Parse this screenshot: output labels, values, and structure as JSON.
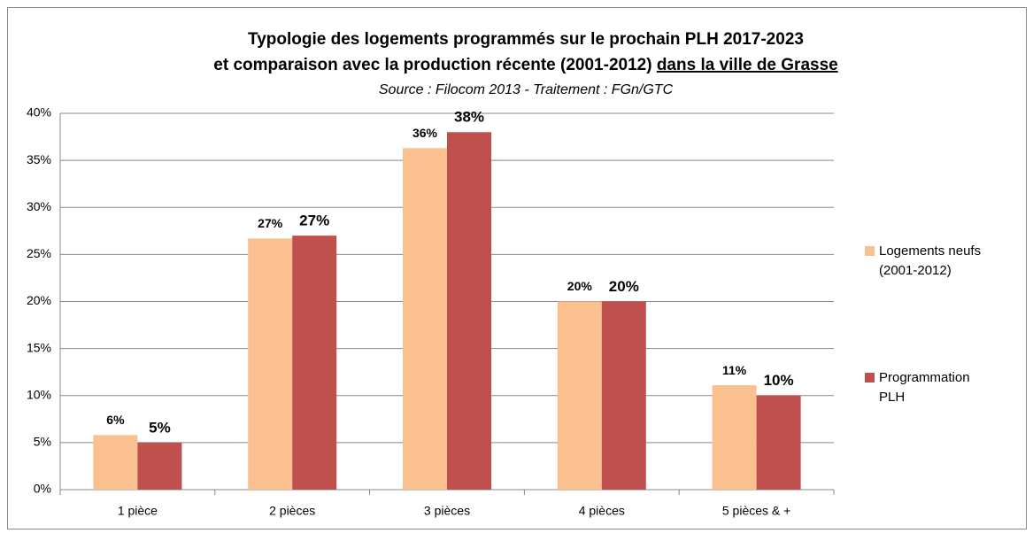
{
  "chart_data": {
    "type": "bar",
    "title": [
      "Typologie des logements programmés sur le prochain PLH 2017-2023",
      "et comparaison avec la production récente (2001-2012)",
      "dans la ville de Grasse"
    ],
    "subtitle": "Source : Filocom 2013 - Traitement : FGn/GTC",
    "categories": [
      "1 pièce",
      "2 pièces",
      "3 pièces",
      "4 pièces",
      "5 pièces & +"
    ],
    "series": [
      {
        "name": "Logements neufs (2001-2012)",
        "color": "#FAC090",
        "label_color": "#9C5A1E",
        "values": [
          5.8,
          26.7,
          36.3,
          20.0,
          11.1
        ],
        "value_labels": [
          "6%",
          "27%",
          "36%",
          "20%",
          "11%"
        ]
      },
      {
        "name": "Programmation PLH",
        "color": "#C0504D",
        "label_color": "#C00000",
        "values": [
          5,
          27,
          38,
          20,
          10
        ],
        "value_labels": [
          "5%",
          "27%",
          "38%",
          "20%",
          "10%"
        ]
      }
    ],
    "ylim": [
      0,
      40
    ],
    "yticks": [
      {
        "value": 0,
        "label": "0%"
      },
      {
        "value": 5,
        "label": "5%"
      },
      {
        "value": 10,
        "label": "10%"
      },
      {
        "value": 15,
        "label": "15%"
      },
      {
        "value": 20,
        "label": "20%"
      },
      {
        "value": 25,
        "label": "25%"
      },
      {
        "value": 30,
        "label": "30%"
      },
      {
        "value": 35,
        "label": "35%"
      },
      {
        "value": 40,
        "label": "40%"
      }
    ],
    "grid": true,
    "legend": "right"
  }
}
